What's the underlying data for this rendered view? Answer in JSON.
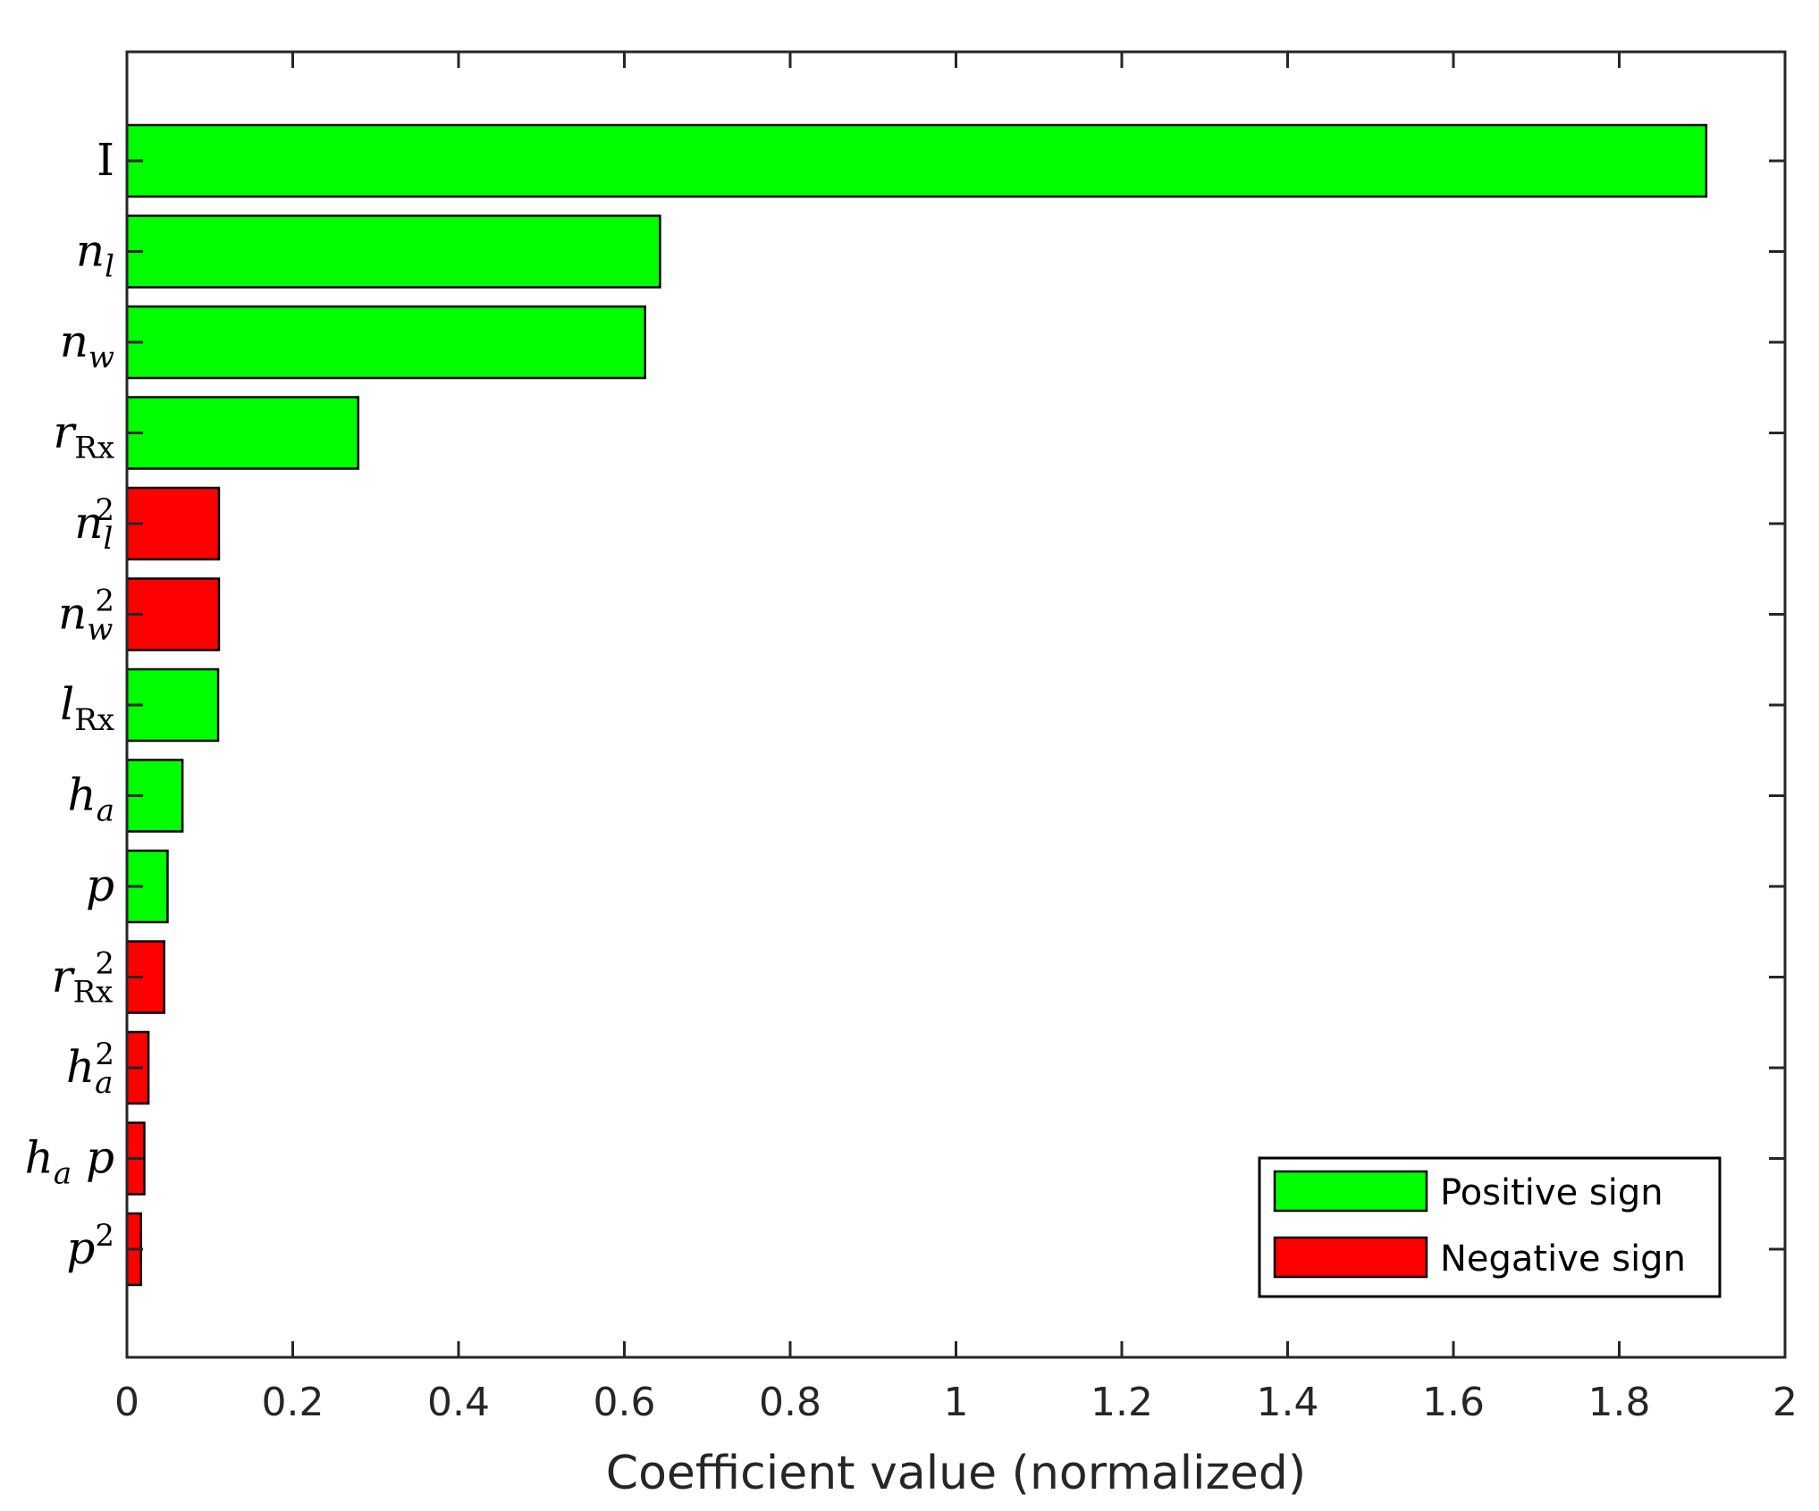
{
  "colors": {
    "positive": "#00ff00",
    "negative": "#ff0000",
    "axis": "#262626"
  },
  "chart_data": {
    "type": "bar",
    "orientation": "horizontal",
    "xlabel": "Coefficient value (normalized)",
    "xlim": [
      0,
      2
    ],
    "xticks": [
      0,
      0.2,
      0.4,
      0.6,
      0.8,
      1,
      1.2,
      1.4,
      1.6,
      1.8,
      2
    ],
    "xtick_labels": [
      "0",
      "0.2",
      "0.4",
      "0.6",
      "0.8",
      "1",
      "1.2",
      "1.4",
      "1.6",
      "1.8",
      "2"
    ],
    "grid": false,
    "legend_position": "bottom-right",
    "legend": [
      {
        "label": "Positive sign",
        "sign": "positive"
      },
      {
        "label": "Negative sign",
        "sign": "negative"
      }
    ],
    "bars": [
      {
        "label": "I",
        "value": 1.905,
        "sign": "positive",
        "label_parts": [
          {
            "t": "I",
            "s": "up"
          }
        ]
      },
      {
        "label": "n_l",
        "value": 0.643,
        "sign": "positive",
        "label_parts": [
          {
            "t": "n"
          },
          {
            "t": "l",
            "s": "sub"
          }
        ]
      },
      {
        "label": "n_w",
        "value": 0.625,
        "sign": "positive",
        "label_parts": [
          {
            "t": "n"
          },
          {
            "t": "w",
            "s": "sub"
          }
        ]
      },
      {
        "label": "r_Rx",
        "value": 0.279,
        "sign": "positive",
        "label_parts": [
          {
            "t": "r"
          },
          {
            "t": "Rx",
            "s": "subup"
          }
        ]
      },
      {
        "label": "n_l^2",
        "value": 0.111,
        "sign": "negative",
        "label_parts": [
          {
            "t": "n"
          },
          {
            "t": "l",
            "s": "sub"
          },
          {
            "t": "2",
            "s": "sup"
          }
        ]
      },
      {
        "label": "n_w^2",
        "value": 0.111,
        "sign": "negative",
        "label_parts": [
          {
            "t": "n"
          },
          {
            "t": "w",
            "s": "sub"
          },
          {
            "t": "2",
            "s": "sup"
          }
        ]
      },
      {
        "label": "l_Rx",
        "value": 0.11,
        "sign": "positive",
        "label_parts": [
          {
            "t": "l"
          },
          {
            "t": "Rx",
            "s": "subup"
          }
        ]
      },
      {
        "label": "h_a",
        "value": 0.067,
        "sign": "positive",
        "label_parts": [
          {
            "t": "h"
          },
          {
            "t": "a",
            "s": "sub"
          }
        ]
      },
      {
        "label": "p",
        "value": 0.049,
        "sign": "positive",
        "label_parts": [
          {
            "t": "p"
          }
        ]
      },
      {
        "label": "r_Rx^2",
        "value": 0.045,
        "sign": "negative",
        "label_parts": [
          {
            "t": "r"
          },
          {
            "t": "Rx",
            "s": "subup"
          },
          {
            "t": "2",
            "s": "sup"
          }
        ]
      },
      {
        "label": "h_a^2",
        "value": 0.026,
        "sign": "negative",
        "label_parts": [
          {
            "t": "h"
          },
          {
            "t": "a",
            "s": "sub"
          },
          {
            "t": "2",
            "s": "sup"
          }
        ]
      },
      {
        "label": "h_a p",
        "value": 0.021,
        "sign": "negative",
        "label_parts": [
          {
            "t": "h"
          },
          {
            "t": "a",
            "s": "sub"
          },
          {
            "t": " p"
          }
        ]
      },
      {
        "label": "p^2",
        "value": 0.017,
        "sign": "negative",
        "label_parts": [
          {
            "t": "p"
          },
          {
            "t": "2",
            "s": "sup"
          }
        ]
      }
    ]
  }
}
